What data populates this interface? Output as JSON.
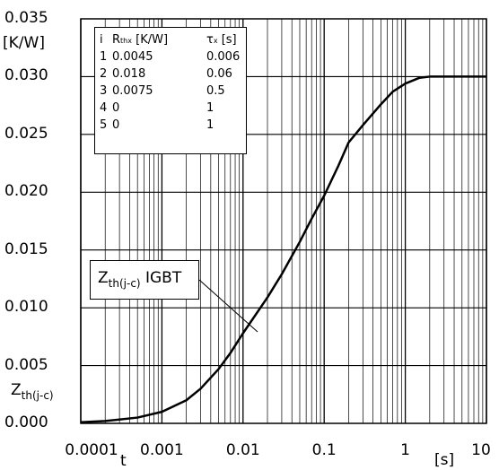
{
  "chart_data": {
    "type": "line",
    "xscale": "log",
    "xlim": [
      0.0001,
      10
    ],
    "ylim": [
      0.0,
      0.035
    ],
    "grid": true,
    "x_tick_labels": [
      "0.0001",
      "0.001",
      "0.01",
      "0.1",
      "1",
      "10"
    ],
    "y_tick_labels": [
      "0.000",
      "0.005",
      "0.010",
      "0.015",
      "0.020",
      "0.025",
      "0.030",
      "0.035"
    ],
    "y_unit": "[K/W]",
    "y_axis_label": {
      "main": "Z",
      "sub": "th(j-c)"
    },
    "x_axis_label": "t",
    "x_unit": "[s]",
    "series": [
      {
        "name_main": "Z",
        "name_sub": "th(j-c)",
        "name_suffix": " IGBT",
        "x": [
          0.0001,
          0.0002,
          0.0005,
          0.001,
          0.002,
          0.003,
          0.005,
          0.007,
          0.01,
          0.02,
          0.03,
          0.05,
          0.07,
          0.1,
          0.15,
          0.2,
          0.3,
          0.5,
          0.7,
          1,
          1.5,
          2,
          3,
          5,
          10
        ],
        "y": [
          0.0001,
          0.0002,
          0.0005,
          0.001,
          0.002,
          0.003,
          0.0047,
          0.0061,
          0.0078,
          0.0109,
          0.0129,
          0.0157,
          0.0177,
          0.0197,
          0.0223,
          0.0243,
          0.0258,
          0.0276,
          0.0287,
          0.0294,
          0.0299,
          0.03,
          0.03,
          0.03,
          0.03
        ]
      }
    ],
    "parameter_table": {
      "headers": {
        "i": "i",
        "r_main": "R",
        "r_sub": "thx",
        "r_unit": " [K/W]",
        "t_main": "τ",
        "t_sub": "x",
        "t_unit": " [s]"
      },
      "rows": [
        {
          "i": "1",
          "r": "0.0045",
          "tau": "0.006"
        },
        {
          "i": "2",
          "r": "0.018",
          "tau": "0.06"
        },
        {
          "i": "3",
          "r": "0.0075",
          "tau": "0.5"
        },
        {
          "i": "4",
          "r": "0",
          "tau": "1"
        },
        {
          "i": "5",
          "r": "0",
          "tau": "1"
        }
      ]
    }
  }
}
